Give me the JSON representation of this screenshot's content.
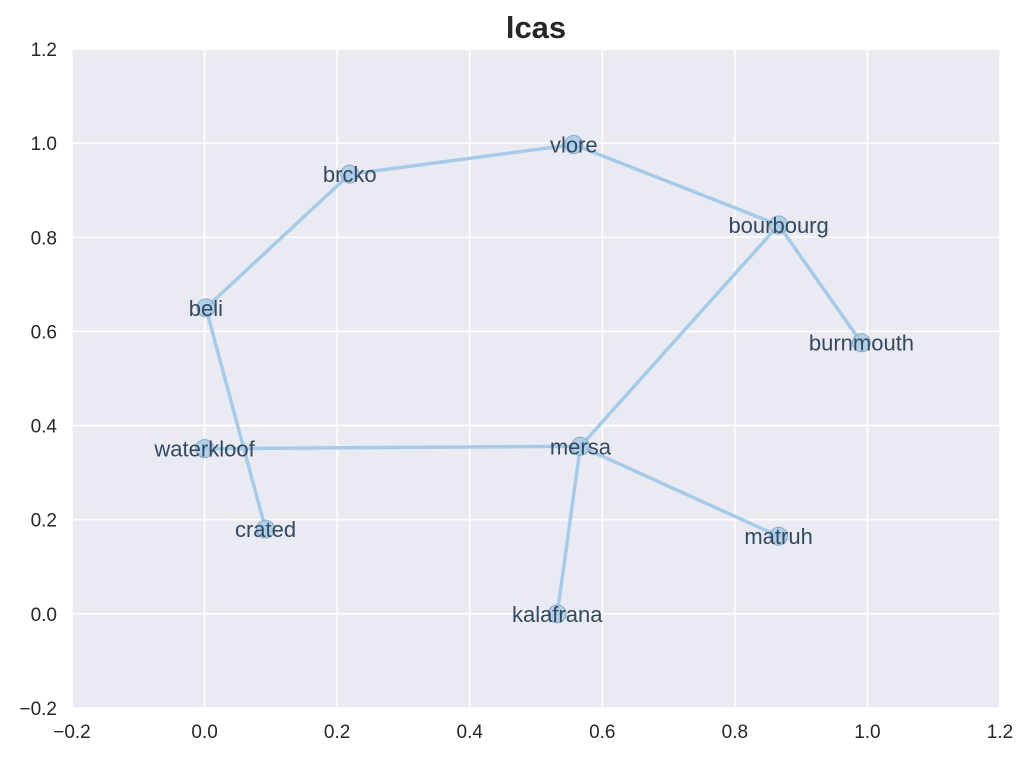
{
  "chart_data": {
    "type": "scatter",
    "title": "lcas",
    "xlabel": "",
    "ylabel": "",
    "xlim": [
      -0.2,
      1.2
    ],
    "ylim": [
      -0.2,
      1.2
    ],
    "xticks": [
      "−0.2",
      "0.0",
      "0.2",
      "0.4",
      "0.6",
      "0.8",
      "1.0",
      "1.2"
    ],
    "xtick_values": [
      -0.2,
      0.0,
      0.2,
      0.4,
      0.6,
      0.8,
      1.0,
      1.2
    ],
    "yticks": [
      "−0.2",
      "0.0",
      "0.2",
      "0.4",
      "0.6",
      "0.8",
      "1.0",
      "1.2"
    ],
    "ytick_values": [
      -0.2,
      0.0,
      0.2,
      0.4,
      0.6,
      0.8,
      1.0,
      1.2
    ],
    "grid": true,
    "nodes": [
      {
        "name": "vlore",
        "x": 0.557,
        "y": 0.997
      },
      {
        "name": "brcko",
        "x": 0.219,
        "y": 0.934
      },
      {
        "name": "bourbourg",
        "x": 0.866,
        "y": 0.826
      },
      {
        "name": "beli",
        "x": 0.002,
        "y": 0.65
      },
      {
        "name": "burnmouth",
        "x": 0.991,
        "y": 0.576
      },
      {
        "name": "waterkloof",
        "x": 0.0,
        "y": 0.351
      },
      {
        "name": "mersa",
        "x": 0.567,
        "y": 0.356
      },
      {
        "name": "crated",
        "x": 0.092,
        "y": 0.18
      },
      {
        "name": "matruh",
        "x": 0.866,
        "y": 0.165
      },
      {
        "name": "kalafrana",
        "x": 0.532,
        "y": 0.0
      }
    ],
    "edges": [
      [
        "beli",
        "brcko"
      ],
      [
        "brcko",
        "vlore"
      ],
      [
        "vlore",
        "bourbourg"
      ],
      [
        "bourbourg",
        "burnmouth"
      ],
      [
        "bourbourg",
        "mersa"
      ],
      [
        "beli",
        "crated"
      ],
      [
        "waterkloof",
        "mersa"
      ],
      [
        "mersa",
        "matruh"
      ],
      [
        "mersa",
        "kalafrana"
      ]
    ],
    "colors": {
      "background": "#eaeaf2",
      "grid": "#ffffff",
      "edge": "#a6cbe8",
      "node_fill": "#a6cbe8",
      "node_stroke": "#8aa9c6",
      "label": "#34495e"
    }
  }
}
